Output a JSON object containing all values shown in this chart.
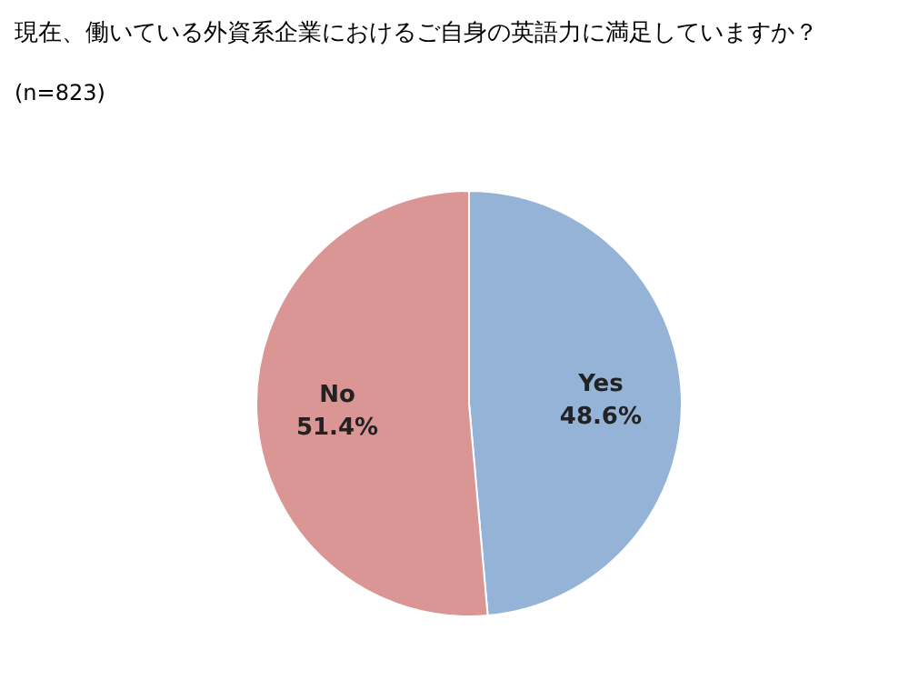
{
  "chart_data": {
    "type": "pie",
    "title": "現在、働いている外資系企業におけるご自身の英語力に満足していますか？",
    "subtitle": "(n=823)",
    "categories": [
      "Yes",
      "No"
    ],
    "values": [
      48.6,
      51.4
    ],
    "colors": [
      "#95b3d7",
      "#d99694"
    ],
    "value_labels": [
      "48.6%",
      "51.4%"
    ],
    "legend": false
  }
}
